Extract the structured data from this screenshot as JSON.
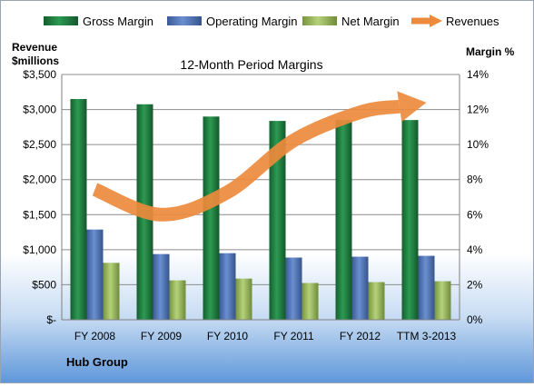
{
  "chart_data": {
    "type": "bar",
    "title": "12-Month Period Margins",
    "left_axis_label": [
      "Revenue",
      "$millions"
    ],
    "right_axis_label": "Margin %",
    "footer": "Hub Group",
    "categories": [
      "FY 2008",
      "FY 2009",
      "FY 2010",
      "FY 2011",
      "FY 2012",
      "TTM 3-2013"
    ],
    "y_left": {
      "min": 0,
      "max": 3500,
      "ticks": [
        0,
        500,
        1000,
        1500,
        2000,
        2500,
        3000,
        3500
      ],
      "tick_labels": [
        "$-",
        "$500",
        "$1,000",
        "$1,500",
        "$2,000",
        "$2,500",
        "$3,000",
        "$3,500"
      ]
    },
    "y_right": {
      "min": 0,
      "max": 14,
      "ticks": [
        0,
        2,
        4,
        6,
        8,
        10,
        12,
        14
      ],
      "tick_labels": [
        "0%",
        "2%",
        "4%",
        "6%",
        "8%",
        "10%",
        "12%",
        "14%"
      ]
    },
    "series": [
      {
        "name": "Gross Margin",
        "axis": "right",
        "color": "#1f7a3e",
        "values": [
          12.6,
          12.3,
          11.6,
          11.35,
          11.4,
          11.4
        ]
      },
      {
        "name": "Operating Margin",
        "axis": "right",
        "color": "#4f74b8",
        "values": [
          5.15,
          3.75,
          3.8,
          3.55,
          3.6,
          3.65
        ]
      },
      {
        "name": "Net Margin",
        "axis": "right",
        "color": "#9bbb59",
        "values": [
          3.25,
          2.25,
          2.35,
          2.1,
          2.15,
          2.2
        ]
      },
      {
        "name": "Revenues",
        "axis": "left",
        "type": "line",
        "style": "arrow",
        "color": "#ed8a3c",
        "values": [
          1860,
          1500,
          1820,
          2560,
          2960,
          3100
        ]
      }
    ],
    "legend_position": "top",
    "grid": true
  }
}
